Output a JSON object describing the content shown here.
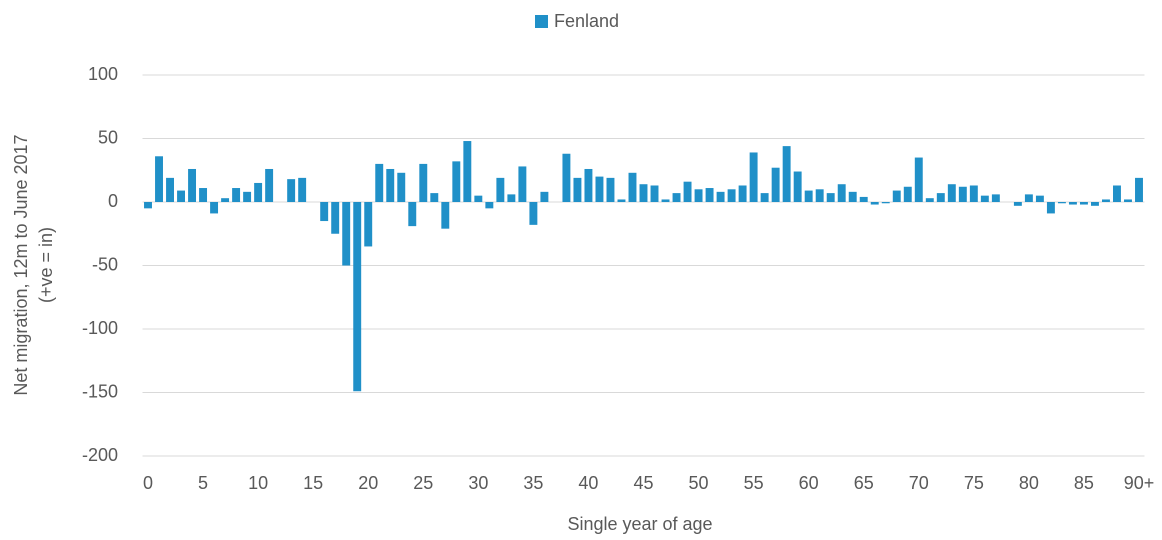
{
  "chart_data": {
    "type": "bar",
    "x_label": "Single year of age",
    "y_label": [
      "Net migration, 12m to June 2017",
      "(+ve = in)"
    ],
    "legend_position": "top",
    "grid": true,
    "series": [
      {
        "name": "Fenland",
        "color": "#2090c8",
        "values": [
          -5,
          36,
          19,
          9,
          26,
          11,
          -9,
          3,
          11,
          8,
          15,
          26,
          0,
          18,
          19,
          0,
          -15,
          -25,
          -50,
          -149,
          -35,
          30,
          26,
          23,
          -19,
          30,
          7,
          -21,
          32,
          48,
          5,
          -5,
          19,
          6,
          28,
          -18,
          8,
          0,
          38,
          19,
          26,
          20,
          19,
          2,
          23,
          14,
          13,
          2,
          7,
          16,
          10,
          11,
          8,
          10,
          13,
          39,
          7,
          27,
          44,
          24,
          9,
          10,
          7,
          14,
          8,
          4,
          -2,
          -1,
          9,
          12,
          35,
          3,
          7,
          14,
          12,
          13,
          5,
          6,
          0,
          -3,
          6,
          5,
          -9,
          -1,
          -2,
          -2,
          -3,
          2,
          13,
          2,
          19
        ]
      }
    ],
    "categories": [
      "0",
      null,
      null,
      null,
      null,
      "5",
      null,
      null,
      null,
      null,
      "10",
      null,
      null,
      null,
      null,
      "15",
      null,
      null,
      null,
      null,
      "20",
      null,
      null,
      null,
      null,
      "25",
      null,
      null,
      null,
      null,
      "30",
      null,
      null,
      null,
      null,
      "35",
      null,
      null,
      null,
      null,
      "40",
      null,
      null,
      null,
      null,
      "45",
      null,
      null,
      null,
      null,
      "50",
      null,
      null,
      null,
      null,
      "55",
      null,
      null,
      null,
      null,
      "60",
      null,
      null,
      null,
      null,
      "65",
      null,
      null,
      null,
      null,
      "70",
      null,
      null,
      null,
      null,
      "75",
      null,
      null,
      null,
      null,
      "80",
      null,
      null,
      null,
      null,
      "85",
      null,
      null,
      null,
      null,
      "90+"
    ],
    "ylim": [
      -200,
      100
    ],
    "yticks": [
      -200,
      -150,
      -100,
      -50,
      0,
      50,
      100
    ]
  }
}
